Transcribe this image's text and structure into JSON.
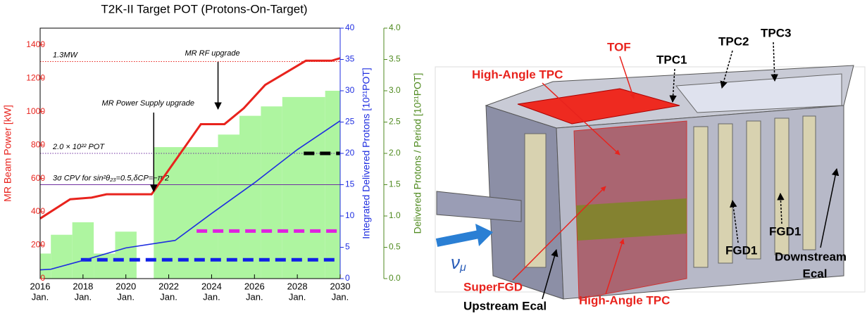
{
  "chart_data": {
    "type": "line",
    "title": "T2K-II Target POT (Protons-On-Target)",
    "ylabel": "MR Beam Power [kW]",
    "y2label": "Integrated Delivered Protons [10²¹POT]",
    "y3label": "Delivered Protons / Period [10²¹POT]",
    "xlim": [
      2016,
      2030
    ],
    "xticks": [
      2016,
      2018,
      2020,
      2022,
      2024,
      2026,
      2028,
      2030
    ],
    "xtick_sublabel": "Jan.",
    "ylim": [
      0,
      1500
    ],
    "yticks": [
      0,
      200,
      400,
      600,
      800,
      1000,
      1200,
      1400
    ],
    "ycolor": "#e8231d",
    "y2lim": [
      0,
      40
    ],
    "y2ticks": [
      0,
      5,
      10,
      15,
      20,
      25,
      30,
      35,
      40
    ],
    "y2color": "#1f2ee0",
    "y3lim": [
      0,
      4
    ],
    "y3ticks": [
      {
        "value": 0,
        "label": "0.0"
      },
      0.5,
      {
        "value": 1,
        "label": "1.0"
      },
      1.5,
      {
        "value": 2,
        "label": "2.0"
      },
      2.5,
      {
        "value": 3,
        "label": "3.0"
      },
      3.5,
      {
        "value": 4,
        "label": "4.0"
      }
    ],
    "y3color": "#4f8a1f",
    "series": [
      {
        "type": "histogram",
        "axis": "y3",
        "color": "#aef5a0",
        "bins": [
          2016,
          2016.5,
          2017.5,
          2018.5,
          2019.5,
          2020.5,
          2021.3,
          2024.3,
          2025.3,
          2026.3,
          2027.3,
          2029.3,
          2030
        ],
        "values": [
          0.4,
          0.7,
          0.9,
          0.4,
          0.75,
          0,
          2.1,
          2.3,
          2.6,
          2.75,
          2.9,
          3.0
        ]
      },
      {
        "type": "line",
        "axis": "y",
        "color": "#e8231d",
        "x": [
          2016,
          2017.4,
          2018.4,
          2019.1,
          2021.2,
          2023.5,
          2024.6,
          2025.5,
          2026.5,
          2028.4,
          2029.6,
          2030
        ],
        "values": [
          360,
          475,
          485,
          505,
          505,
          925,
          925,
          1020,
          1160,
          1305,
          1305,
          1320
        ]
      },
      {
        "type": "line",
        "axis": "y2",
        "color": "#1f2ee0",
        "x": [
          2016,
          2016.5,
          2018,
          2020,
          2022.3,
          2024,
          2026,
          2028,
          2030
        ],
        "values": [
          1.4,
          1.5,
          2.9,
          4.9,
          6.1,
          10.4,
          15.3,
          20.6,
          25.2
        ]
      }
    ],
    "reference_lines": [
      {
        "label": "1.3MW",
        "value": 1300,
        "axis": "y",
        "color": "#e8231d",
        "style": "dotted"
      },
      {
        "label": "2.0 × 10²² POT",
        "value": 20,
        "axis": "y2",
        "color": "#7030a0",
        "style": "dotted"
      },
      {
        "label": "3σ CPV for sin²θ₂₃=0.5,δCP=−π/2",
        "value": 15,
        "axis": "y2",
        "color": "#7030a0",
        "style": "solid"
      }
    ],
    "targets": [
      {
        "x": [
          2017.9,
          2030
        ],
        "value": 3,
        "axis": "y2",
        "color": "#1020e8"
      },
      {
        "x": [
          2023.3,
          2030
        ],
        "value": 7.6,
        "axis": "y2",
        "color": "#e020e0"
      },
      {
        "x": [
          2028.3,
          2030
        ],
        "value": 20,
        "axis": "y2",
        "color": "#000000"
      }
    ],
    "annotations": [
      {
        "text": "MR RF upgrade",
        "x": 2024.3
      },
      {
        "text": "MR Power Supply upgrade",
        "x": 2021.3
      }
    ]
  },
  "diagram": {
    "labels": [
      "TOF",
      "TPC1",
      "TPC2",
      "TPC3",
      "High-Angle TPC",
      "SuperFGD",
      "Upstream Ecal",
      "High-Angle TPC",
      "FGD1",
      "FGD1",
      "Downstream",
      "Ecal"
    ],
    "beam": {
      "symbol": "ν",
      "subscript": "μ"
    }
  }
}
